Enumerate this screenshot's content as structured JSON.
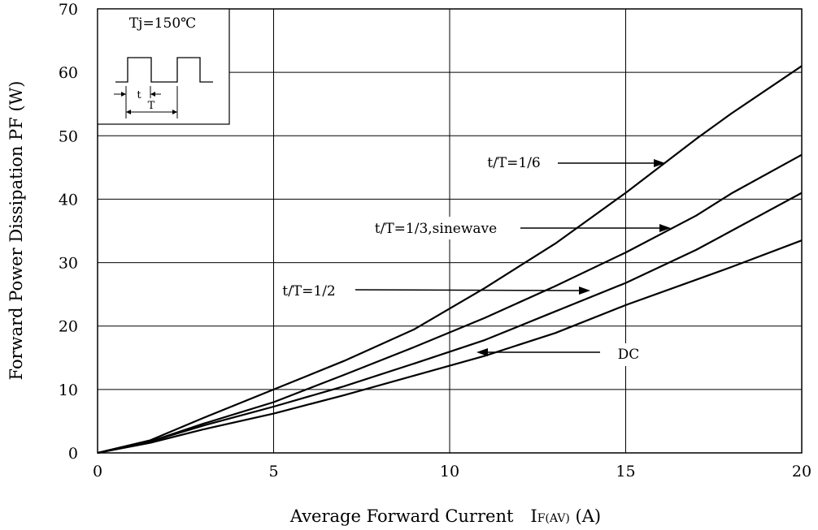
{
  "chart_data": {
    "type": "line",
    "xlabel": "Average Forward Current　I",
    "xlabel_sub": "F(AV)",
    "xlabel_unit": " (A)",
    "ylabel": "Forward Power Dissipation PF (W)",
    "xlim": [
      0,
      20
    ],
    "ylim": [
      0,
      70
    ],
    "xticks": [
      0,
      5,
      10,
      15,
      20
    ],
    "yticks": [
      0,
      10,
      20,
      30,
      40,
      50,
      60,
      70
    ],
    "grid": true,
    "inset": {
      "condition": "Tj=150℃",
      "t_label": "t",
      "T_label": "T"
    },
    "series": [
      {
        "name": "t/T=1/6",
        "x": [
          0,
          1.5,
          3,
          5,
          7,
          9,
          11,
          13,
          15,
          17,
          18,
          20
        ],
        "y": [
          0,
          2.0,
          5.5,
          10,
          14.5,
          19.5,
          26,
          33,
          41,
          49.5,
          53.5,
          61
        ]
      },
      {
        "name": "t/T=1/3,sinewave",
        "x": [
          0,
          1.5,
          3,
          5,
          7,
          9,
          11,
          13,
          15,
          17,
          18,
          20
        ],
        "y": [
          0,
          1.8,
          4.6,
          8.0,
          12.3,
          16.7,
          21.3,
          26.3,
          31.6,
          37.4,
          40.9,
          47
        ]
      },
      {
        "name": "t/T=1/2",
        "x": [
          0,
          1.5,
          3,
          5,
          7,
          9,
          11,
          13,
          15,
          17,
          18,
          20
        ],
        "y": [
          0,
          1.8,
          4.3,
          7.3,
          10.5,
          14.1,
          17.8,
          22.3,
          26.8,
          32.0,
          35.0,
          41
        ]
      },
      {
        "name": "DC",
        "x": [
          0,
          1.5,
          3,
          5,
          7,
          9,
          11,
          13,
          15,
          17,
          18,
          20
        ],
        "y": [
          0,
          1.6,
          3.7,
          6.2,
          9.1,
          12.2,
          15.3,
          18.9,
          23.3,
          27.3,
          29.3,
          33.5
        ]
      }
    ],
    "annotations": [
      {
        "text": "t/T=1/6"
      },
      {
        "text": "t/T=1/3,sinewave"
      },
      {
        "text": "t/T=1/2"
      },
      {
        "text": "DC"
      }
    ]
  }
}
